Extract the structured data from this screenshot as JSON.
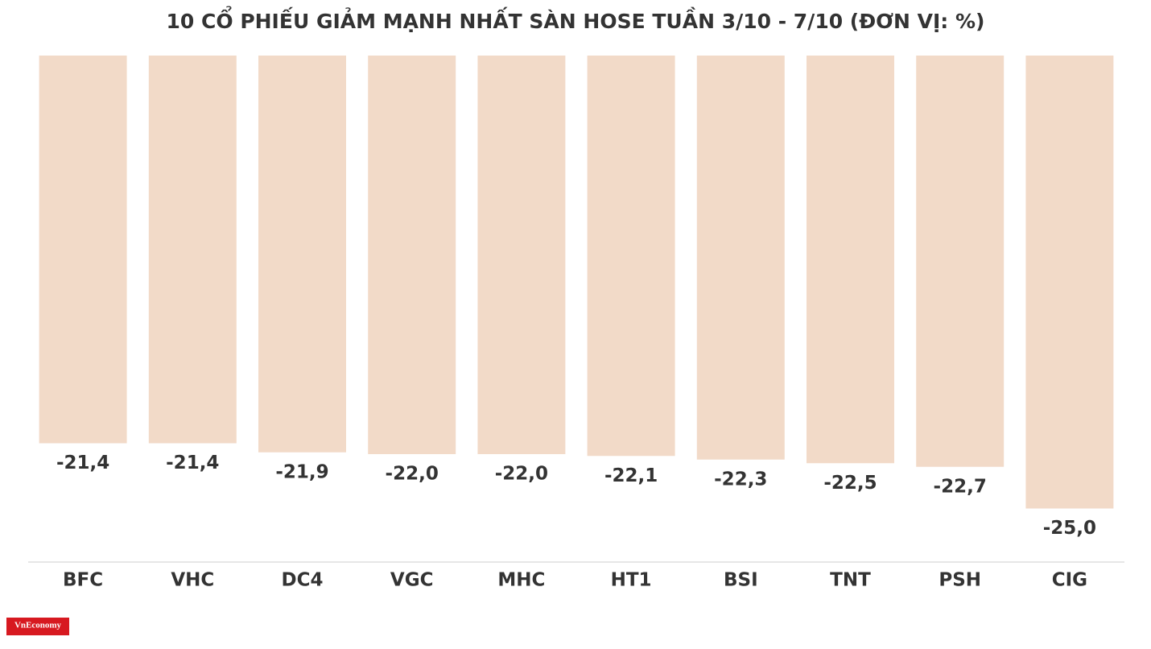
{
  "chart_data": {
    "type": "bar",
    "title": "10 CỔ PHIẾU GIẢM MẠNH NHẤT SÀN HOSE TUẦN 3/10 - 7/10 (ĐƠN VỊ: %)",
    "categories": [
      "BFC",
      "VHC",
      "DC4",
      "VGC",
      "MHC",
      "HT1",
      "BSI",
      "TNT",
      "PSH",
      "CIG"
    ],
    "values": [
      -21.4,
      -21.4,
      -21.9,
      -22.0,
      -22.0,
      -22.1,
      -22.3,
      -22.5,
      -22.7,
      -25.0
    ],
    "value_labels": [
      "-21,4",
      "-21,4",
      "-21,9",
      "-22,0",
      "-22,0",
      "-22,1",
      "-22,3",
      "-22,5",
      "-22,7",
      "-25,0"
    ],
    "color": "#f2dac8",
    "ylim": [
      -28,
      0
    ]
  },
  "logo": "VnEconomy"
}
